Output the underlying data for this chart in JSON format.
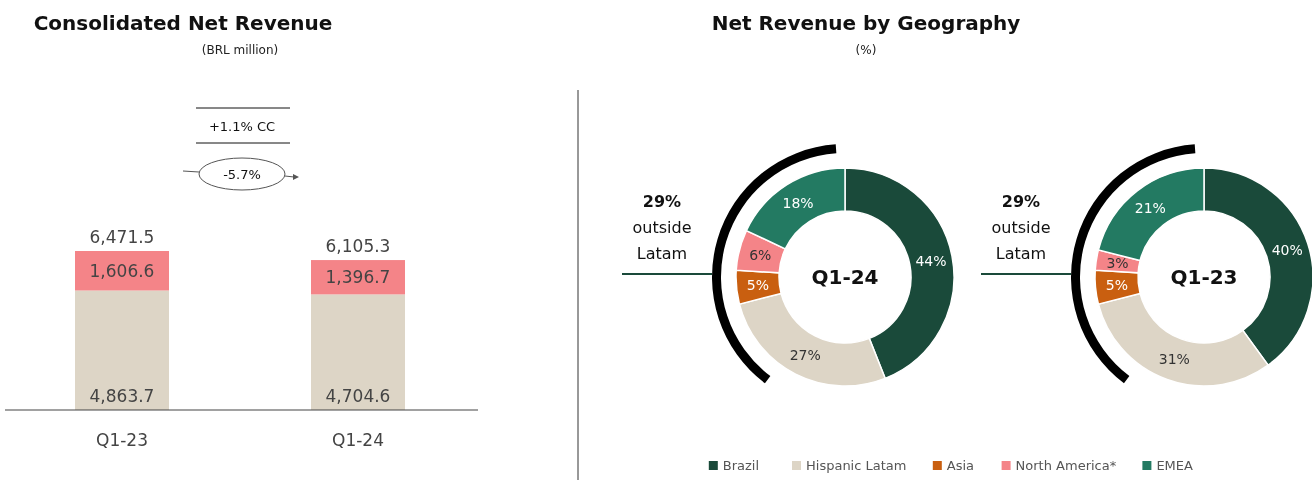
{
  "chart_data": [
    {
      "type": "bar",
      "title": "Consolidated Net Revenue",
      "subtitle": "(BRL million)",
      "categories": [
        "Q1-23",
        "Q1-24"
      ],
      "stacked": true,
      "series": [
        {
          "color": "#ddd5c6",
          "values": [
            4863.7,
            4704.6
          ],
          "value_labels": [
            "4,863.7",
            "4,704.6"
          ]
        },
        {
          "color": "#f48488",
          "values": [
            1606.6,
            1396.7
          ],
          "value_labels": [
            "1,606.6",
            "1,396.7"
          ]
        }
      ],
      "annotations": [
        "+1.1% CC",
        "-5.7%",
        {
          "text": "6,471.5",
          "x": "Q1-23",
          "y": 6471.5
        },
        {
          "text": "6,105.3",
          "x": "Q1-24",
          "y": 6105.3
        }
      ]
    },
    {
      "type": "donut",
      "title": "Net Revenue by Geography",
      "subtitle": "(%)",
      "categories": [
        "Brazil",
        "Hispanic Latam",
        "Asia",
        "North America*",
        "EMEA"
      ],
      "colors": [
        "#1a4a3a",
        "#ddd5c6",
        "#c95f10",
        "#f48488",
        "#237a62"
      ],
      "legend": "bottom",
      "series": [
        {
          "name": "Q1-24",
          "values": [
            44,
            27,
            5,
            6,
            18
          ],
          "value_labels": [
            "44%",
            "27%",
            "5%",
            "6%",
            "18%"
          ]
        },
        {
          "name": "Q1-23",
          "values": [
            40,
            31,
            5,
            3,
            21
          ],
          "value_labels": [
            "40%",
            "31%",
            "5%",
            "3%",
            "21%"
          ]
        }
      ],
      "annotations": [
        "29% outside Latam",
        "29% outside Latam"
      ]
    }
  ]
}
